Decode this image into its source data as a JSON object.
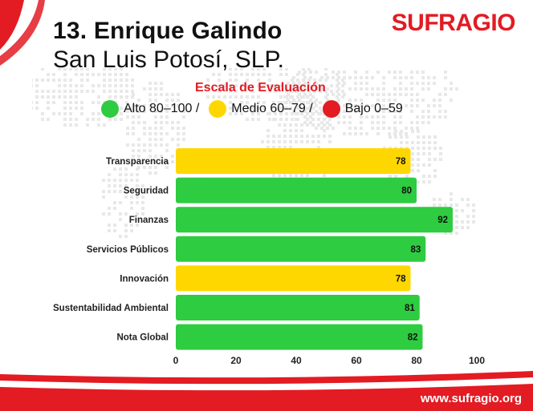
{
  "header": {
    "title_line1": "13. Enrique Galindo",
    "title_line2": "San Luis Potosí, SLP.",
    "brand": "SUFRAGIO"
  },
  "scale": {
    "title": "Escala de Evaluación",
    "items": [
      {
        "label": "Alto 80–100 /",
        "color": "#2ecc40"
      },
      {
        "label": "Medio 60–79 /",
        "color": "#ffd700"
      },
      {
        "label": "Bajo 0–59",
        "color": "#e31b23"
      }
    ]
  },
  "footer": {
    "url": "www.sufragio.org"
  },
  "colors": {
    "accent": "#e31b23",
    "high": "#2ecc40",
    "medium": "#ffd700"
  },
  "chart_data": {
    "type": "bar",
    "orientation": "horizontal",
    "categories": [
      "Transparencia",
      "Seguridad",
      "Finanzas",
      "Servicios Públicos",
      "Innovación",
      "Sustentabilidad Ambiental",
      "Nota Global"
    ],
    "values": [
      78,
      80,
      92,
      83,
      78,
      81,
      82
    ],
    "xlim": [
      0,
      100
    ],
    "xticks": [
      0,
      20,
      40,
      60,
      80,
      100
    ],
    "grid": false,
    "legend_position": "top"
  }
}
